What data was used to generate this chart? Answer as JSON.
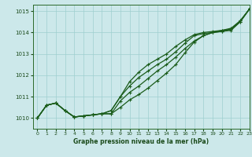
{
  "xlabel": "Graphe pression niveau de la mer (hPa)",
  "xlim": [
    -0.5,
    23
  ],
  "ylim": [
    1009.5,
    1015.3
  ],
  "yticks": [
    1010,
    1011,
    1012,
    1013,
    1014,
    1015
  ],
  "xticks": [
    0,
    1,
    2,
    3,
    4,
    5,
    6,
    7,
    8,
    9,
    10,
    11,
    12,
    13,
    14,
    15,
    16,
    17,
    18,
    19,
    20,
    21,
    22,
    23
  ],
  "bg_color": "#cce8ea",
  "grid_color": "#9fcfcf",
  "line_color": "#1a5c1a",
  "lw": 0.9,
  "lines": [
    [
      1010.0,
      1010.6,
      1010.7,
      1010.35,
      1010.05,
      1010.1,
      1010.15,
      1010.2,
      1010.2,
      1010.5,
      1010.85,
      1011.1,
      1011.4,
      1011.75,
      1012.1,
      1012.5,
      1013.05,
      1013.55,
      1013.85,
      1014.0,
      1014.05,
      1014.1,
      1014.5,
      1015.1
    ],
    [
      1010.0,
      1010.6,
      1010.7,
      1010.35,
      1010.05,
      1010.1,
      1010.15,
      1010.2,
      1010.2,
      1010.8,
      1011.2,
      1011.5,
      1011.85,
      1012.2,
      1012.5,
      1012.85,
      1013.25,
      1013.6,
      1013.85,
      1014.0,
      1014.05,
      1014.15,
      1014.5,
      1015.1
    ],
    [
      1010.0,
      1010.6,
      1010.7,
      1010.35,
      1010.05,
      1010.1,
      1010.15,
      1010.2,
      1010.35,
      1011.0,
      1011.5,
      1011.9,
      1012.2,
      1012.5,
      1012.75,
      1013.1,
      1013.5,
      1013.85,
      1013.95,
      1014.0,
      1014.1,
      1014.15,
      1014.55,
      1015.1
    ],
    [
      1010.0,
      1010.6,
      1010.7,
      1010.35,
      1010.05,
      1010.1,
      1010.15,
      1010.2,
      1010.35,
      1011.0,
      1011.7,
      1012.15,
      1012.5,
      1012.75,
      1013.0,
      1013.35,
      1013.65,
      1013.9,
      1014.0,
      1014.05,
      1014.1,
      1014.2,
      1014.55,
      1015.1
    ]
  ]
}
